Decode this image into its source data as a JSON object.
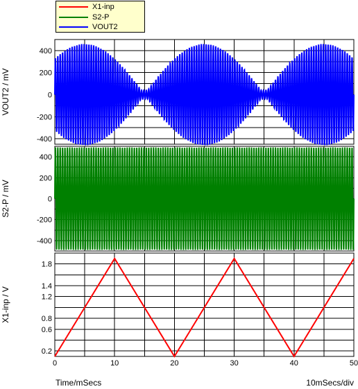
{
  "legend": [
    {
      "label": "X1-inp",
      "color": "#ff0000"
    },
    {
      "label": "S2-P",
      "color": "#008000"
    },
    {
      "label": "VOUT2",
      "color": "#0000ff"
    }
  ],
  "footer": {
    "xlabel": "Time/mSecs",
    "scale": "10mSecs/div"
  },
  "chart_data": [
    {
      "type": "line",
      "name": "VOUT2",
      "ylabel": "VOUT2 / mV",
      "color": "#0000ff",
      "xlim": [
        0,
        50
      ],
      "ylim": [
        -450,
        500
      ],
      "yticks": [
        400,
        200,
        0,
        -200,
        -400
      ],
      "xticks": [
        0,
        10,
        20,
        30,
        40,
        50
      ],
      "signal": "AM modulated sine: carrier 2.5 kHz, envelope 450 mV, envelope minima near 15 mSecs and 35 mSecs",
      "carrier_frequency_khz": 2.5,
      "peak_mv": 460
    },
    {
      "type": "line",
      "name": "S2-P",
      "ylabel": "S2-P / mV",
      "color": "#008000",
      "xlim": [
        0,
        50
      ],
      "ylim": [
        -500,
        500
      ],
      "yticks": [
        400,
        200,
        0,
        -200,
        -400
      ],
      "xticks": [
        0,
        10,
        20,
        30,
        40,
        50
      ],
      "signal": "constant amplitude sine carrier, 2.5 kHz",
      "carrier_frequency_khz": 2.5,
      "amplitude_mv": 490
    },
    {
      "type": "line",
      "name": "X1-inp",
      "ylabel": "X1-inp / V",
      "color": "#ff0000",
      "xlim": [
        0,
        50
      ],
      "ylim": [
        0.1,
        2.0
      ],
      "yticks": [
        1.8,
        1.4,
        1.2,
        0.8,
        0.6,
        0.2
      ],
      "xticks": [
        0,
        10,
        20,
        30,
        40,
        50
      ],
      "x": [
        0,
        10,
        20,
        30,
        40,
        50
      ],
      "y": [
        0.1,
        1.9,
        0.1,
        1.9,
        0.1,
        1.9
      ]
    }
  ]
}
